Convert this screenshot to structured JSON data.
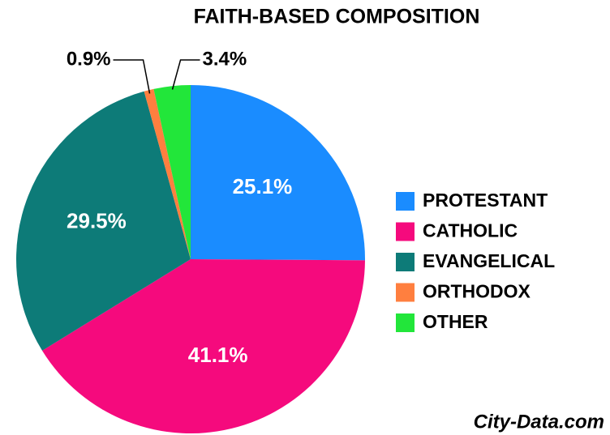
{
  "chart_data": {
    "type": "pie",
    "title": "FAITH-BASED COMPOSITION",
    "categories": [
      "PROTESTANT",
      "CATHOLIC",
      "EVANGELICAL",
      "ORTHODOX",
      "OTHER"
    ],
    "values": [
      25.1,
      41.1,
      29.5,
      0.9,
      3.4
    ],
    "value_labels": [
      "25.1%",
      "41.1%",
      "29.5%",
      "0.9%",
      "3.4%"
    ],
    "colors": [
      "#1a8cff",
      "#f50a7d",
      "#0d7b78",
      "#ff7f3f",
      "#22e63a"
    ],
    "legend": "right",
    "watermark": "City-Data.com"
  }
}
